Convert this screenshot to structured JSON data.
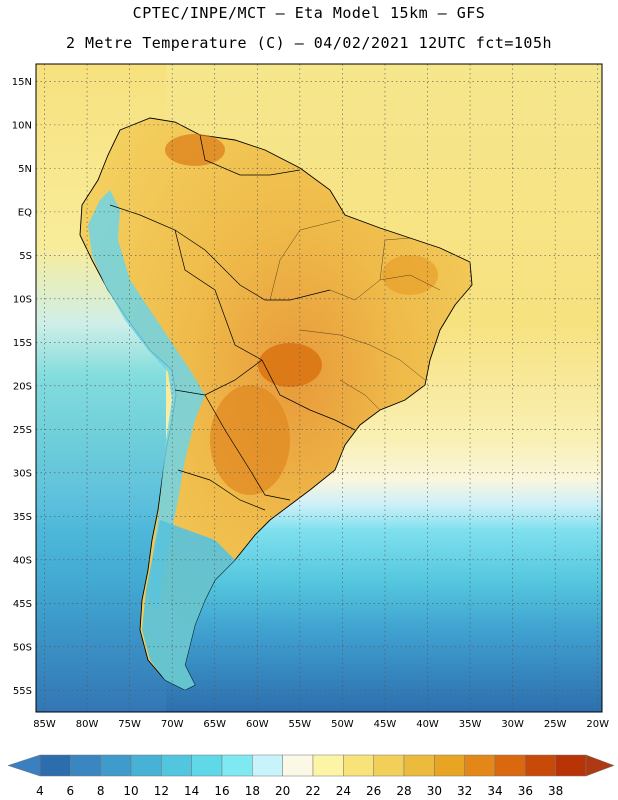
{
  "header": {
    "line1": "CPTEC/INPE/MCT –  Eta Model 15km – GFS",
    "line2": "2 Metre Temperature (C) – 04/02/2021 12UTC fct=105h"
  },
  "map": {
    "lon_range": [
      -86,
      -19.5
    ],
    "lat_range": [
      -57.5,
      17
    ],
    "lon_ticks": [
      "85W",
      "80W",
      "75W",
      "70W",
      "65W",
      "60W",
      "55W",
      "50W",
      "45W",
      "40W",
      "35W",
      "30W",
      "25W",
      "20W"
    ],
    "lat_ticks": [
      "15N",
      "10N",
      "5N",
      "EQ",
      "5S",
      "10S",
      "15S",
      "20S",
      "25S",
      "30S",
      "35S",
      "40S",
      "45S",
      "50S",
      "55S"
    ],
    "gridlines": true
  },
  "colorbar": {
    "labels": [
      "4",
      "6",
      "8",
      "10",
      "12",
      "14",
      "16",
      "18",
      "20",
      "22",
      "24",
      "26",
      "28",
      "30",
      "32",
      "34",
      "36",
      "38"
    ],
    "colors": [
      "#2c6dad",
      "#3a86c0",
      "#3f9bcc",
      "#47b1d6",
      "#52c6de",
      "#5fd9e8",
      "#7fe9f2",
      "#c9f3fb",
      "#fbf8e6",
      "#fdf5a6",
      "#f8e27a",
      "#f2cf59",
      "#ecbb3e",
      "#e8a524",
      "#e28718",
      "#d9680e",
      "#c84a08",
      "#b83406"
    ]
  }
}
